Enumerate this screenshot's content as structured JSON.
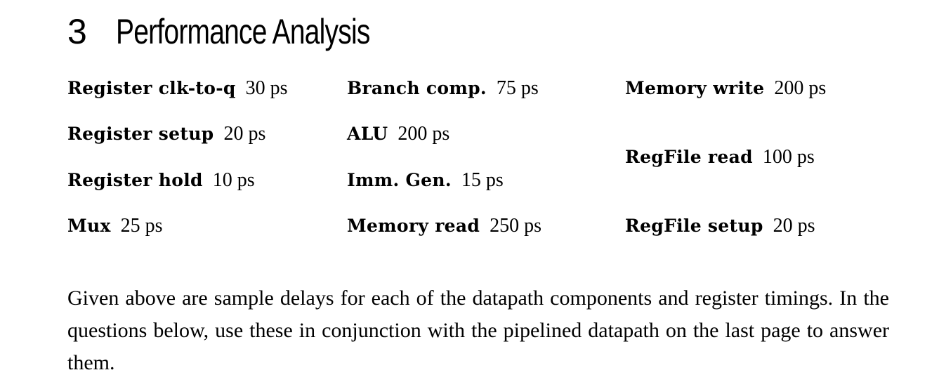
{
  "section": {
    "number": "3",
    "title": "Performance Analysis"
  },
  "delays": [
    {
      "name": "Register clk-to-q",
      "value": "30 ps"
    },
    {
      "name": "Register setup",
      "value": "20 ps"
    },
    {
      "name": "Register hold",
      "value": "10 ps"
    },
    {
      "name": "Mux",
      "value": "25 ps"
    },
    {
      "name": "Branch comp.",
      "value": "75 ps"
    },
    {
      "name": "ALU",
      "value": "200 ps"
    },
    {
      "name": "Imm. Gen.",
      "value": "15 ps"
    },
    {
      "name": "Memory read",
      "value": "250 ps"
    },
    {
      "name": "Memory write",
      "value": "200 ps"
    },
    {
      "name": "RegFile read",
      "value": "100 ps"
    },
    {
      "name": "RegFile setup",
      "value": "20 ps"
    }
  ],
  "description": "Given above are sample delays for each of the datapath components and register timings. In the questions below, use these in conjunction with the pipelined datapath on the last page to answer them."
}
